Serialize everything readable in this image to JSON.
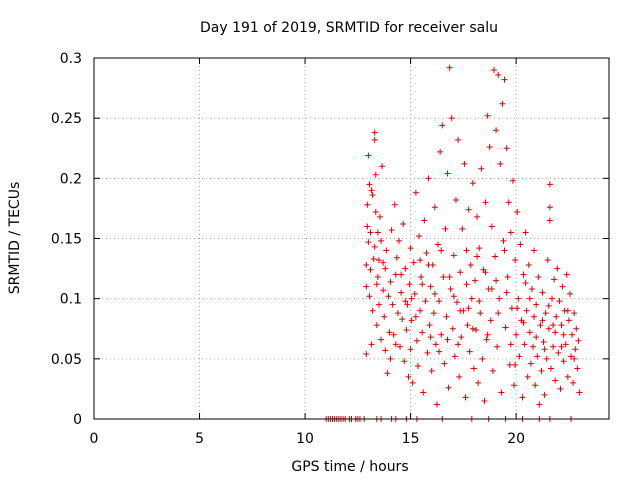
{
  "chart_data": {
    "type": "scatter",
    "title": "Day 191 of 2019, SRMTID for receiver salu",
    "xlabel": "GPS time / hours",
    "ylabel": "SRMTID / TECUs",
    "xlim": [
      0,
      24.4
    ],
    "ylim": [
      0,
      0.3
    ],
    "xticks": [
      0,
      5,
      10,
      15,
      20
    ],
    "xtick_labels": [
      "0",
      "5",
      "10",
      "15",
      "20"
    ],
    "yticks": [
      0,
      0.05,
      0.1,
      0.15,
      0.2,
      0.25,
      0.3
    ],
    "ytick_labels": [
      "0",
      "0.05",
      "0.1",
      "0.15",
      "0.2",
      "0.25",
      "0.3"
    ],
    "grid": true,
    "marker": "+",
    "series": [
      {
        "name": "SRMTID",
        "color": "#e00000",
        "points": [
          [
            11.0,
            0.0
          ],
          [
            11.1,
            0.0
          ],
          [
            11.2,
            0.0
          ],
          [
            11.3,
            0.0
          ],
          [
            11.4,
            0.0
          ],
          [
            11.5,
            0.0
          ],
          [
            11.6,
            0.0
          ],
          [
            11.7,
            0.0
          ],
          [
            11.8,
            0.0
          ],
          [
            11.9,
            0.0
          ],
          [
            12.1,
            0.0
          ],
          [
            12.2,
            0.0
          ],
          [
            12.4,
            0.0
          ],
          [
            12.5,
            0.0
          ],
          [
            12.6,
            0.0
          ],
          [
            12.8,
            0.0
          ],
          [
            13.4,
            0.0
          ],
          [
            13.6,
            0.0
          ],
          [
            14.1,
            0.0
          ],
          [
            14.3,
            0.0
          ],
          [
            14.8,
            0.0
          ],
          [
            15.3,
            0.0
          ],
          [
            16.5,
            0.0
          ],
          [
            17.9,
            0.0
          ],
          [
            18.7,
            0.0
          ],
          [
            19.5,
            0.0
          ],
          [
            20.3,
            0.0
          ],
          [
            21.1,
            0.0
          ],
          [
            21.6,
            0.0
          ],
          [
            22.6,
            0.0
          ],
          [
            12.9,
            0.054
          ],
          [
            12.9,
            0.11
          ],
          [
            12.9,
            0.128
          ],
          [
            12.95,
            0.16
          ],
          [
            12.95,
            0.178
          ],
          [
            13.0,
            0.219
          ],
          [
            13.0,
            0.147
          ],
          [
            13.05,
            0.102
          ],
          [
            13.05,
            0.195
          ],
          [
            13.1,
            0.124
          ],
          [
            13.1,
            0.155
          ],
          [
            13.15,
            0.062
          ],
          [
            13.2,
            0.186
          ],
          [
            13.2,
            0.09
          ],
          [
            13.25,
            0.133
          ],
          [
            13.3,
            0.238
          ],
          [
            13.3,
            0.232
          ],
          [
            13.3,
            0.143
          ],
          [
            13.35,
            0.203
          ],
          [
            13.35,
            0.172
          ],
          [
            13.4,
            0.112
          ],
          [
            13.4,
            0.078
          ],
          [
            13.45,
            0.118
          ],
          [
            13.5,
            0.132
          ],
          [
            13.5,
            0.095
          ],
          [
            13.55,
            0.168
          ],
          [
            13.6,
            0.148
          ],
          [
            13.6,
            0.066
          ],
          [
            13.65,
            0.21
          ],
          [
            13.7,
            0.107
          ],
          [
            13.75,
            0.085
          ],
          [
            13.8,
            0.125
          ],
          [
            13.8,
            0.057
          ],
          [
            13.85,
            0.14
          ],
          [
            13.9,
            0.038
          ],
          [
            13.95,
            0.102
          ],
          [
            14.0,
            0.072
          ],
          [
            14.05,
            0.114
          ],
          [
            14.1,
            0.157
          ],
          [
            14.15,
            0.095
          ],
          [
            14.2,
            0.07
          ],
          [
            14.25,
            0.178
          ],
          [
            14.3,
            0.12
          ],
          [
            14.35,
            0.134
          ],
          [
            14.4,
            0.088
          ],
          [
            14.45,
            0.148
          ],
          [
            14.5,
            0.06
          ],
          [
            14.55,
            0.105
          ],
          [
            14.6,
            0.083
          ],
          [
            14.65,
            0.162
          ],
          [
            14.7,
            0.048
          ],
          [
            14.75,
            0.125
          ],
          [
            14.8,
            0.074
          ],
          [
            14.85,
            0.095
          ],
          [
            14.9,
            0.035
          ],
          [
            14.95,
            0.112
          ],
          [
            15.0,
            0.142
          ],
          [
            15.0,
            0.058
          ],
          [
            15.05,
            0.082
          ],
          [
            15.1,
            0.03
          ],
          [
            15.15,
            0.13
          ],
          [
            15.2,
            0.104
          ],
          [
            15.25,
            0.188
          ],
          [
            15.3,
            0.065
          ],
          [
            15.35,
            0.044
          ],
          [
            15.4,
            0.152
          ],
          [
            15.45,
            0.09
          ],
          [
            15.5,
            0.118
          ],
          [
            15.55,
            0.072
          ],
          [
            15.6,
            0.022
          ],
          [
            15.65,
            0.165
          ],
          [
            15.7,
            0.098
          ],
          [
            15.75,
            0.138
          ],
          [
            15.8,
            0.055
          ],
          [
            15.85,
            0.2
          ],
          [
            15.9,
            0.078
          ],
          [
            15.95,
            0.11
          ],
          [
            16.0,
            0.04
          ],
          [
            16.05,
            0.128
          ],
          [
            16.1,
            0.088
          ],
          [
            16.15,
            0.176
          ],
          [
            16.2,
            0.062
          ],
          [
            16.25,
            0.012
          ],
          [
            16.3,
            0.145
          ],
          [
            16.35,
            0.098
          ],
          [
            16.4,
            0.222
          ],
          [
            16.45,
            0.07
          ],
          [
            16.5,
            0.244
          ],
          [
            16.55,
            0.118
          ],
          [
            16.6,
            0.046
          ],
          [
            16.65,
            0.158
          ],
          [
            16.7,
            0.085
          ],
          [
            16.75,
            0.204
          ],
          [
            16.8,
            0.026
          ],
          [
            16.85,
            0.292
          ],
          [
            16.9,
            0.108
          ],
          [
            16.95,
            0.25
          ],
          [
            17.0,
            0.075
          ],
          [
            17.05,
            0.136
          ],
          [
            17.1,
            0.052
          ],
          [
            17.15,
            0.182
          ],
          [
            17.2,
            0.097
          ],
          [
            17.25,
            0.232
          ],
          [
            17.3,
            0.035
          ],
          [
            17.35,
            0.122
          ],
          [
            17.4,
            0.068
          ],
          [
            17.45,
            0.158
          ],
          [
            17.5,
            0.09
          ],
          [
            17.55,
            0.212
          ],
          [
            17.6,
            0.018
          ],
          [
            17.65,
            0.14
          ],
          [
            17.7,
            0.078
          ],
          [
            17.75,
            0.174
          ],
          [
            17.8,
            0.056
          ],
          [
            17.85,
            0.128
          ],
          [
            17.9,
            0.1
          ],
          [
            17.95,
            0.196
          ],
          [
            18.0,
            0.042
          ],
          [
            18.05,
            0.115
          ],
          [
            18.1,
            0.074
          ],
          [
            18.15,
            0.168
          ],
          [
            18.2,
            0.03
          ],
          [
            18.25,
            0.142
          ],
          [
            18.3,
            0.088
          ],
          [
            18.35,
            0.208
          ],
          [
            18.4,
            0.05
          ],
          [
            18.45,
            0.124
          ],
          [
            18.5,
            0.015
          ],
          [
            18.55,
            0.18
          ],
          [
            18.6,
            0.066
          ],
          [
            18.65,
            0.252
          ],
          [
            18.7,
            0.108
          ],
          [
            18.75,
            0.226
          ],
          [
            18.8,
            0.082
          ],
          [
            18.85,
            0.16
          ],
          [
            18.9,
            0.04
          ],
          [
            18.95,
            0.29
          ],
          [
            19.0,
            0.135
          ],
          [
            19.05,
            0.24
          ],
          [
            19.1,
            0.06
          ],
          [
            19.15,
            0.286
          ],
          [
            19.2,
            0.1
          ],
          [
            19.25,
            0.212
          ],
          [
            19.3,
            0.022
          ],
          [
            19.35,
            0.262
          ],
          [
            19.4,
            0.148
          ],
          [
            19.45,
            0.282
          ],
          [
            19.5,
            0.076
          ],
          [
            19.55,
            0.225
          ],
          [
            19.6,
            0.118
          ],
          [
            19.65,
            0.18
          ],
          [
            19.7,
            0.045
          ],
          [
            19.75,
            0.155
          ],
          [
            19.8,
            0.092
          ],
          [
            19.85,
            0.198
          ],
          [
            19.9,
            0.028
          ],
          [
            19.95,
            0.132
          ],
          [
            20.0,
            0.07
          ],
          [
            20.05,
            0.172
          ],
          [
            20.1,
            0.1
          ],
          [
            20.15,
            0.052
          ],
          [
            20.2,
            0.145
          ],
          [
            20.25,
            0.082
          ],
          [
            20.3,
            0.018
          ],
          [
            20.35,
            0.12
          ],
          [
            20.4,
            0.062
          ],
          [
            20.45,
            0.155
          ],
          [
            20.5,
            0.09
          ],
          [
            20.55,
            0.035
          ],
          [
            20.6,
            0.128
          ],
          [
            20.65,
            0.072
          ],
          [
            20.7,
            0.046
          ],
          [
            20.75,
            0.108
          ],
          [
            20.8,
            0.06
          ],
          [
            20.85,
            0.14
          ],
          [
            20.9,
            0.028
          ],
          [
            20.95,
            0.095
          ],
          [
            21.0,
            0.052
          ],
          [
            21.05,
            0.118
          ],
          [
            21.1,
            0.012
          ],
          [
            21.15,
            0.078
          ],
          [
            21.2,
            0.04
          ],
          [
            21.25,
            0.105
          ],
          [
            21.3,
            0.064
          ],
          [
            21.35,
            0.02
          ],
          [
            21.4,
            0.088
          ],
          [
            21.45,
            0.05
          ],
          [
            21.5,
            0.132
          ],
          [
            21.55,
            0.075
          ],
          [
            21.6,
            0.195
          ],
          [
            21.6,
            0.176
          ],
          [
            21.6,
            0.165
          ],
          [
            21.65,
            0.042
          ],
          [
            21.7,
            0.1
          ],
          [
            21.75,
            0.06
          ],
          [
            21.8,
            0.116
          ],
          [
            21.85,
            0.032
          ],
          [
            21.9,
            0.085
          ],
          [
            21.95,
            0.125
          ],
          [
            22.0,
            0.055
          ],
          [
            22.05,
            0.098
          ],
          [
            22.1,
            0.025
          ],
          [
            22.15,
            0.078
          ],
          [
            22.2,
            0.11
          ],
          [
            22.25,
            0.048
          ],
          [
            22.3,
            0.09
          ],
          [
            22.35,
            0.062
          ],
          [
            22.4,
            0.12
          ],
          [
            22.45,
            0.035
          ],
          [
            22.5,
            0.082
          ],
          [
            22.55,
            0.104
          ],
          [
            22.6,
            0.052
          ],
          [
            22.65,
            0.07
          ],
          [
            22.7,
            0.03
          ],
          [
            22.75,
            0.088
          ],
          [
            22.8,
            0.058
          ],
          [
            22.85,
            0.075
          ],
          [
            22.9,
            0.042
          ],
          [
            22.95,
            0.065
          ],
          [
            23.0,
            0.022
          ],
          [
            13.15,
            0.19
          ],
          [
            13.45,
            0.155
          ],
          [
            13.7,
            0.13
          ],
          [
            14.3,
            0.062
          ],
          [
            14.75,
            0.098
          ],
          [
            15.25,
            0.085
          ],
          [
            15.55,
            0.112
          ],
          [
            15.85,
            0.128
          ],
          [
            16.15,
            0.104
          ],
          [
            16.45,
            0.14
          ],
          [
            16.75,
            0.066
          ],
          [
            17.05,
            0.102
          ],
          [
            17.35,
            0.09
          ],
          [
            17.65,
            0.112
          ],
          [
            17.95,
            0.075
          ],
          [
            18.25,
            0.098
          ],
          [
            18.55,
            0.122
          ],
          [
            18.85,
            0.108
          ],
          [
            19.15,
            0.088
          ],
          [
            19.45,
            0.14
          ],
          [
            19.75,
            0.062
          ],
          [
            20.05,
            0.092
          ],
          [
            20.35,
            0.08
          ],
          [
            20.65,
            0.1
          ],
          [
            20.95,
            0.068
          ],
          [
            21.25,
            0.082
          ],
          [
            21.55,
            0.094
          ],
          [
            21.85,
            0.072
          ],
          [
            22.15,
            0.06
          ],
          [
            22.45,
            0.09
          ],
          [
            14.05,
            0.05
          ],
          [
            14.55,
            0.12
          ],
          [
            15.05,
            0.1
          ],
          [
            15.45,
            0.132
          ],
          [
            15.95,
            0.068
          ],
          [
            16.35,
            0.056
          ],
          [
            16.85,
            0.118
          ],
          [
            17.25,
            0.062
          ],
          [
            17.75,
            0.092
          ],
          [
            18.15,
            0.135
          ],
          [
            18.65,
            0.07
          ],
          [
            19.05,
            0.115
          ],
          [
            19.55,
            0.105
          ],
          [
            19.95,
            0.045
          ],
          [
            20.45,
            0.113
          ],
          [
            20.85,
            0.085
          ],
          [
            21.35,
            0.058
          ],
          [
            21.75,
            0.078
          ],
          [
            22.25,
            0.07
          ],
          [
            22.75,
            0.05
          ]
        ]
      }
    ]
  }
}
